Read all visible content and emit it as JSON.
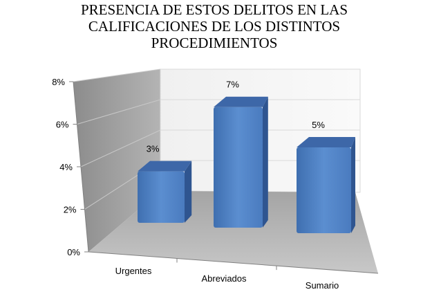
{
  "chart_data": {
    "type": "bar",
    "title_lines": [
      "PRESENCIA DE ESTOS DELITOS EN LAS",
      "CALIFICACIONES DE LOS DISTINTOS",
      "PROCEDIMIENTOS"
    ],
    "categories": [
      "Urgentes",
      "Abreviados",
      "Sumario"
    ],
    "values": [
      3,
      7,
      5
    ],
    "value_labels": [
      "3%",
      "7%",
      "5%"
    ],
    "y_ticks": [
      "0%",
      "2%",
      "4%",
      "6%",
      "8%"
    ],
    "y_tick_values": [
      0,
      2,
      4,
      6,
      8
    ],
    "ylim": [
      0,
      8
    ],
    "bar_color": "#4F81BD",
    "grid": true,
    "legend": "none",
    "style": "3d-column"
  }
}
